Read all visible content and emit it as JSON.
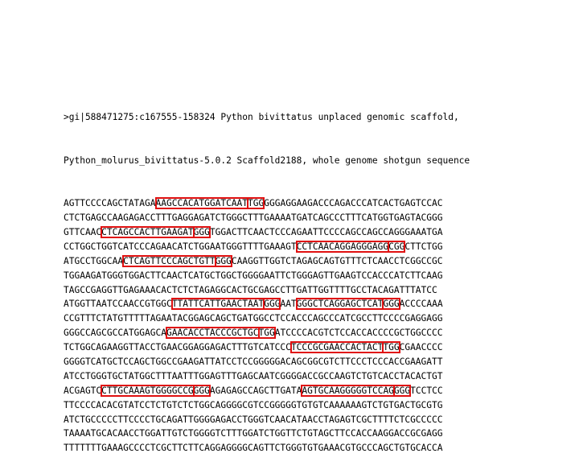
{
  "header": {
    "line1": ">gi|588471275:c167555-158324 Python bivittatus unplaced genomic scaffold,",
    "line2": "Python_molurus_bivittatus-5.0.2 Scaffold2188, whole genome shotgun sequence"
  },
  "highlight_color": "#e01010",
  "sequence_lines": [
    [
      {
        "t": "AGTTCCCCAGCTATAGA"
      },
      {
        "t": "AAGCCACATGGATCAAT",
        "g": 1
      },
      {
        "t": "TGG",
        "p": 1
      },
      {
        "t": "GGGAGGAAGACCCAGACCCATCACTGAGTCCAC"
      }
    ],
    [
      {
        "t": "CTCTGAGCCAAGAGACCTTTGAGGAGATCTGGGCTTTGAAAATGATCAGCCCTTTCATGGTGAGTACGGG"
      }
    ],
    [
      {
        "t": "GTTCAAC"
      },
      {
        "t": "CTCAGCCACTTGAAGAT",
        "g": 1
      },
      {
        "t": "GGG",
        "p": 1
      },
      {
        "t": "TGGACTTCAACTCCCAGAATTCCCCAGCCAGCCAGGGAAATGA"
      }
    ],
    [
      {
        "t": "CCTGGCTGGTCATCCCAGAACATCTGGAATGGGTTTTGAAAGT"
      },
      {
        "t": "CCTCAACAGGAGGGAGG",
        "g": 1
      },
      {
        "t": "CGG",
        "p": 1
      },
      {
        "t": "CTTCTGG"
      }
    ],
    [
      {
        "t": "ATGCCTGGCAA"
      },
      {
        "t": "CTCAGTTCCCAGCTGTT",
        "g": 1
      },
      {
        "t": "GGG",
        "p": 1
      },
      {
        "t": "CAAGGTTGGTCTAGAGCAGTGTTTCTCAACCTCGGCCGC"
      }
    ],
    [
      {
        "t": "TGGAAGATGGGTGGACTTCAACTCATGCTGGCTGGGGAATTCTGGGAGTTGAAGTCCACCCATCTTCAAG"
      }
    ],
    [
      {
        "t": "TAGCCGAGGTTGAGAAACACTCTCTAGAGGCACTGCGAGCCTTGATTGGTTTTGCCTACAGATTTATCC"
      }
    ],
    [
      {
        "t": "ATGGTTAATCCAACCGTGGC"
      },
      {
        "t": "TTATTCATTGAACTAAT",
        "g": 1
      },
      {
        "t": "GGG",
        "p": 1
      },
      {
        "t": "AAT"
      },
      {
        "t": "GGGCTCAGGAGCTCAT",
        "g": 1
      },
      {
        "t": "GGG",
        "p": 1
      },
      {
        "t": "ACCCCAAA"
      }
    ],
    [
      {
        "t": "CCGTTTCTATGTTTTTAGAATACGGAGCAGCTGATGGCCTCCACCCAGCCCATCGCCTTCCCCGAGGAGG"
      }
    ],
    [
      {
        "t": "GGGCCAGCGCCATGGAGCA"
      },
      {
        "t": "GAACACCTACCCGCTGC",
        "g": 1
      },
      {
        "t": "TGG",
        "p": 1
      },
      {
        "t": "ATCCCCACGTCTCCACCACCCCGCTGGCCCC"
      }
    ],
    [
      {
        "t": "TCTGGCAGAAGGTTACCTGAACGGAGGAGACTTTGTCATCCC"
      },
      {
        "t": "TCCCGCGAACCACTACT",
        "g": 1
      },
      {
        "t": "TGG",
        "p": 1
      },
      {
        "t": "CGAACCCC"
      }
    ],
    [
      {
        "t": "GGGGTCATGCTCCAGCTGGCCGAAGATTATCCTCCGGGGGACAGCGGCGTCTTCCCTCCCACCGAAGATT"
      }
    ],
    [
      {
        "t": "ATCCTGGGTGCTATGGCTTTAATTTGGAGTTTGAGCAATCGGGGACCGCCAAGTCTGTCACCTACACTGT"
      }
    ],
    [
      {
        "t": "ACGAGTC"
      },
      {
        "t": "CTTGCAAAGTGGGGCCG",
        "g": 1
      },
      {
        "t": "GGG",
        "p": 1
      },
      {
        "t": "AGAGAGCCAGCTTGATA"
      },
      {
        "t": "AGTGCAAGGGGGTCCAG",
        "g": 1
      },
      {
        "t": "GGG",
        "p": 1
      },
      {
        "t": "TCCTCC"
      }
    ],
    [
      {
        "t": "TTCCCCACACGTATCCTCTGTCTCTGGCAGGGGCGTCCGGGGGTGTGTCAAAAAAGTCTGTGACTGCGTG"
      }
    ],
    [
      {
        "t": "ATCTGCCCCCTTCCCCTGCAGATTGGGGAGACCTGGGTCAACATAACCTAGAGTCGCTTTTCTCGCCCCC"
      }
    ],
    [
      {
        "t": "TAAAATGCACAACCTGGATTGTCTGGGGTCTTTGGATCTGGTTCTGTAGCTTCCACCAAGGACCGCGAGG"
      }
    ],
    [
      {
        "t": "TTTTTTTGAAAGCCCCTCGCTTCTTCAGGAGGGGCAGTTCTGGGTGTGAAACGTGCCCAGCTGTGCACCA"
      }
    ]
  ]
}
